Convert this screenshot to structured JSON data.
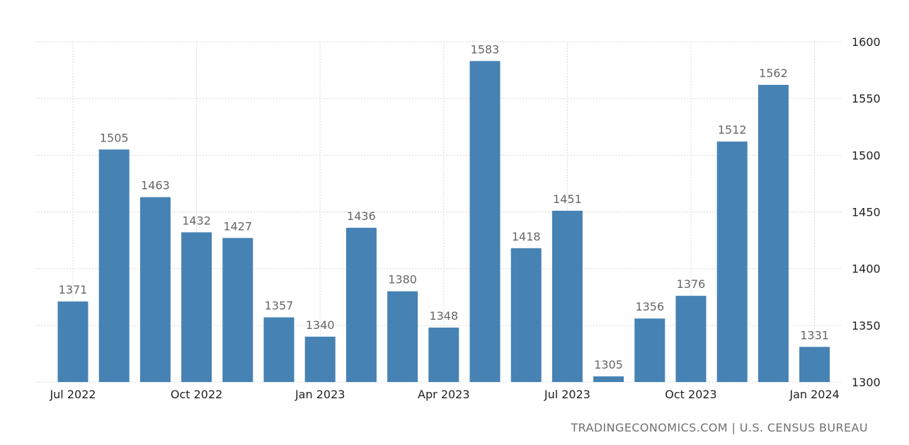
{
  "chart_data": {
    "type": "bar",
    "categories": [
      "Jul 2022",
      "Aug 2022",
      "Sep 2022",
      "Oct 2022",
      "Nov 2022",
      "Dec 2022",
      "Jan 2023",
      "Feb 2023",
      "Mar 2023",
      "Apr 2023",
      "May 2023",
      "Jun 2023",
      "Jul 2023",
      "Aug 2023",
      "Sep 2023",
      "Oct 2023",
      "Nov 2023",
      "Dec 2023",
      "Jan 2024"
    ],
    "values": [
      1371,
      1505,
      1463,
      1432,
      1427,
      1357,
      1340,
      1436,
      1380,
      1348,
      1583,
      1418,
      1451,
      1305,
      1356,
      1376,
      1512,
      1562,
      1331
    ],
    "x_tick_labels": [
      "Jul 2022",
      "Oct 2022",
      "Jan 2023",
      "Apr 2023",
      "Jul 2023",
      "Oct 2023",
      "Jan 2024"
    ],
    "y_ticks": [
      1300,
      1350,
      1400,
      1450,
      1500,
      1550,
      1600
    ],
    "ylim": [
      1300,
      1600
    ],
    "grid": true,
    "y_axis_position": "right",
    "bar_color": "#4682b4"
  },
  "source": "TRADINGECONOMICS.COM | U.S. CENSUS BUREAU"
}
